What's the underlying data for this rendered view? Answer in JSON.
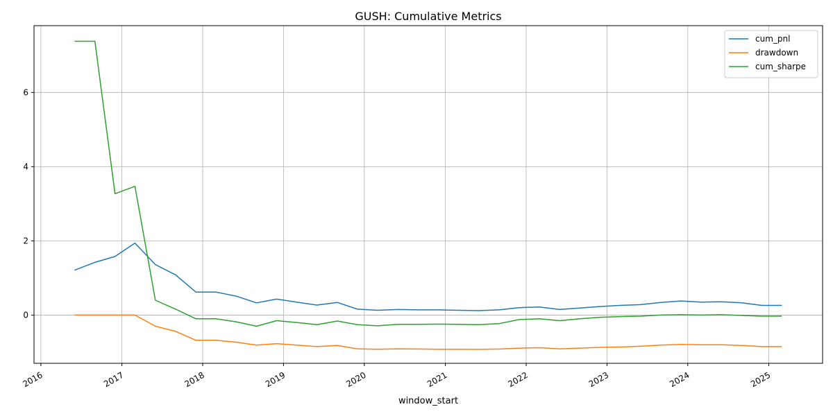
{
  "chart_data": {
    "type": "line",
    "title": "GUSH: Cumulative Metrics",
    "xlabel": "window_start",
    "ylabel": "",
    "x_ticks": [
      "2016",
      "2017",
      "2018",
      "2019",
      "2020",
      "2021",
      "2022",
      "2023",
      "2024",
      "2025"
    ],
    "y_ticks": [
      0,
      2,
      4,
      6
    ],
    "xlim": [
      "2015-12-01",
      "2025-09-01"
    ],
    "ylim": [
      -1.3,
      7.8
    ],
    "grid": true,
    "legend_position": "top-right",
    "x": [
      "2016-06-01",
      "2016-09-01",
      "2016-12-01",
      "2017-03-01",
      "2017-06-01",
      "2017-09-01",
      "2017-12-01",
      "2018-03-01",
      "2018-06-01",
      "2018-09-01",
      "2018-12-01",
      "2019-03-01",
      "2019-06-01",
      "2019-09-01",
      "2019-12-01",
      "2020-03-01",
      "2020-06-01",
      "2020-09-01",
      "2020-12-01",
      "2021-03-01",
      "2021-06-01",
      "2021-09-01",
      "2021-12-01",
      "2022-03-01",
      "2022-06-01",
      "2022-09-01",
      "2022-12-01",
      "2023-03-01",
      "2023-06-01",
      "2023-09-01",
      "2023-12-01",
      "2024-03-01",
      "2024-06-01",
      "2024-09-01",
      "2024-12-01",
      "2025-03-01"
    ],
    "series": [
      {
        "name": "cum_pnl",
        "color": "#1f77b4",
        "values": [
          1.21,
          1.42,
          1.58,
          1.94,
          1.36,
          1.08,
          0.62,
          0.62,
          0.51,
          0.33,
          0.43,
          0.35,
          0.27,
          0.34,
          0.16,
          0.13,
          0.15,
          0.14,
          0.14,
          0.13,
          0.12,
          0.14,
          0.2,
          0.22,
          0.15,
          0.19,
          0.23,
          0.26,
          0.28,
          0.34,
          0.38,
          0.35,
          0.36,
          0.33,
          0.26,
          0.26
        ]
      },
      {
        "name": "drawdown",
        "color": "#ff7f0e",
        "values": [
          0.0,
          0.0,
          0.0,
          0.0,
          -0.3,
          -0.44,
          -0.68,
          -0.68,
          -0.73,
          -0.81,
          -0.77,
          -0.81,
          -0.85,
          -0.82,
          -0.91,
          -0.92,
          -0.91,
          -0.915,
          -0.92,
          -0.92,
          -0.925,
          -0.915,
          -0.89,
          -0.88,
          -0.91,
          -0.89,
          -0.87,
          -0.86,
          -0.84,
          -0.81,
          -0.79,
          -0.8,
          -0.8,
          -0.82,
          -0.85,
          -0.85
        ]
      },
      {
        "name": "cum_sharpe",
        "color": "#2ca02c",
        "values": [
          7.38,
          7.38,
          3.27,
          3.47,
          0.4,
          0.16,
          -0.1,
          -0.1,
          -0.18,
          -0.3,
          -0.15,
          -0.2,
          -0.26,
          -0.16,
          -0.26,
          -0.29,
          -0.25,
          -0.25,
          -0.245,
          -0.25,
          -0.26,
          -0.23,
          -0.12,
          -0.1,
          -0.15,
          -0.1,
          -0.06,
          -0.04,
          -0.03,
          0.0,
          0.01,
          0.0,
          0.01,
          -0.01,
          -0.03,
          -0.03
        ]
      }
    ]
  }
}
